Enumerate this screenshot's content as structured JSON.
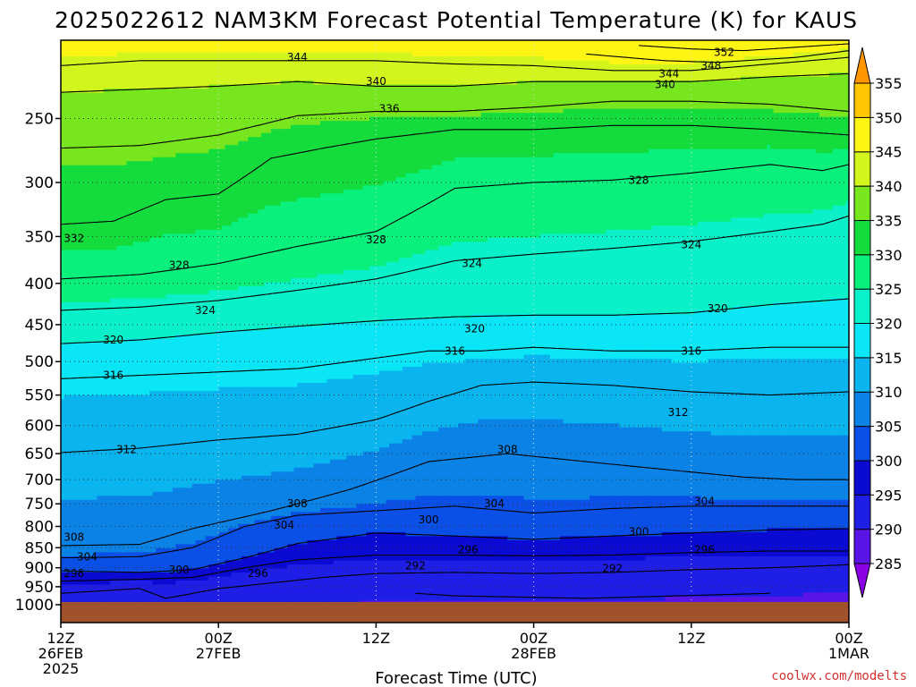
{
  "chart_data": {
    "type": "heatmap",
    "title": "2025022612 NAM3KM Forecast Potential Temperature (K) for KAUS",
    "xlabel": "Forecast Time (UTC)",
    "ylabel": "",
    "x_ticks": [
      {
        "h": 0,
        "line1": "12Z",
        "line2": "26FEB",
        "line3": "2025"
      },
      {
        "h": 12,
        "line1": "00Z",
        "line2": "27FEB",
        "line3": ""
      },
      {
        "h": 24,
        "line1": "12Z",
        "line2": "",
        "line3": ""
      },
      {
        "h": 36,
        "line1": "00Z",
        "line2": "28FEB",
        "line3": ""
      },
      {
        "h": 48,
        "line1": "12Z",
        "line2": "",
        "line3": ""
      },
      {
        "h": 60,
        "line1": "00Z",
        "line2": "1MAR",
        "line3": ""
      }
    ],
    "xlim_hours": [
      0,
      60
    ],
    "y_scale": "log-pressure (hPa), inverted",
    "ylim_hpa": [
      1000,
      200
    ],
    "y_ticks": [
      250,
      300,
      350,
      400,
      450,
      500,
      550,
      600,
      650,
      700,
      750,
      800,
      850,
      900,
      950,
      1000
    ],
    "grid": "dotted",
    "colorbar": {
      "levels": [
        285,
        290,
        295,
        300,
        305,
        310,
        315,
        320,
        325,
        330,
        335,
        340,
        345,
        350,
        355
      ],
      "colors": [
        "#8a00e6",
        "#5a14e6",
        "#1e1ee6",
        "#0a0ad2",
        "#0a50e6",
        "#0a82e6",
        "#0ab4ee",
        "#0ae6f5",
        "#0af0c8",
        "#0af07d",
        "#14dc3c",
        "#78e61e",
        "#d2f51e",
        "#fff514",
        "#ffc800",
        "#ff9600"
      ],
      "labels": [
        "285",
        "290",
        "295",
        "300",
        "305",
        "310",
        "315",
        "320",
        "325",
        "330",
        "335",
        "340",
        "345",
        "350",
        "355"
      ],
      "extend": "both",
      "placement": "right"
    },
    "series": [
      {
        "theta": 288,
        "p": [
          {
            "h": 27,
            "p": 968
          },
          {
            "h": 30,
            "p": 975
          },
          {
            "h": 40,
            "p": 982
          },
          {
            "h": 50,
            "p": 972
          },
          {
            "h": 54,
            "p": 968
          }
        ]
      },
      {
        "theta": 292,
        "p": [
          {
            "h": 0,
            "p": 968
          },
          {
            "h": 6,
            "p": 955
          },
          {
            "h": 8,
            "p": 982
          },
          {
            "h": 12,
            "p": 955
          },
          {
            "h": 16,
            "p": 940
          },
          {
            "h": 20,
            "p": 925
          },
          {
            "h": 24,
            "p": 915
          },
          {
            "h": 30,
            "p": 912
          },
          {
            "h": 36,
            "p": 915
          },
          {
            "h": 42,
            "p": 912
          },
          {
            "h": 48,
            "p": 905
          },
          {
            "h": 54,
            "p": 900
          },
          {
            "h": 58,
            "p": 895
          },
          {
            "h": 60,
            "p": 892
          }
        ]
      },
      {
        "theta": 296,
        "p": [
          {
            "h": 0,
            "p": 935
          },
          {
            "h": 6,
            "p": 930
          },
          {
            "h": 10,
            "p": 925
          },
          {
            "h": 14,
            "p": 900
          },
          {
            "h": 18,
            "p": 880
          },
          {
            "h": 24,
            "p": 868
          },
          {
            "h": 30,
            "p": 868
          },
          {
            "h": 36,
            "p": 870
          },
          {
            "h": 42,
            "p": 868
          },
          {
            "h": 48,
            "p": 862
          },
          {
            "h": 54,
            "p": 858
          },
          {
            "h": 60,
            "p": 858
          }
        ]
      },
      {
        "theta": 300,
        "p": [
          {
            "h": 0,
            "p": 908
          },
          {
            "h": 6,
            "p": 912
          },
          {
            "h": 10,
            "p": 905
          },
          {
            "h": 14,
            "p": 875
          },
          {
            "h": 18,
            "p": 840
          },
          {
            "h": 24,
            "p": 815
          },
          {
            "h": 30,
            "p": 822
          },
          {
            "h": 36,
            "p": 830
          },
          {
            "h": 42,
            "p": 822
          },
          {
            "h": 48,
            "p": 815
          },
          {
            "h": 54,
            "p": 808
          },
          {
            "h": 60,
            "p": 805
          }
        ]
      },
      {
        "theta": 304,
        "p": [
          {
            "h": 0,
            "p": 875
          },
          {
            "h": 6,
            "p": 872
          },
          {
            "h": 10,
            "p": 850
          },
          {
            "h": 14,
            "p": 800
          },
          {
            "h": 18,
            "p": 775
          },
          {
            "h": 24,
            "p": 765
          },
          {
            "h": 30,
            "p": 755
          },
          {
            "h": 36,
            "p": 770
          },
          {
            "h": 42,
            "p": 760
          },
          {
            "h": 48,
            "p": 755
          },
          {
            "h": 54,
            "p": 755
          },
          {
            "h": 60,
            "p": 755
          }
        ]
      },
      {
        "theta": 308,
        "p": [
          {
            "h": 0,
            "p": 845
          },
          {
            "h": 6,
            "p": 842
          },
          {
            "h": 10,
            "p": 805
          },
          {
            "h": 16,
            "p": 765
          },
          {
            "h": 22,
            "p": 720
          },
          {
            "h": 28,
            "p": 665
          },
          {
            "h": 34,
            "p": 650
          },
          {
            "h": 40,
            "p": 665
          },
          {
            "h": 46,
            "p": 680
          },
          {
            "h": 52,
            "p": 695
          },
          {
            "h": 56,
            "p": 700
          },
          {
            "h": 60,
            "p": 700
          }
        ]
      },
      {
        "theta": 312,
        "p": [
          {
            "h": 0,
            "p": 648
          },
          {
            "h": 6,
            "p": 640
          },
          {
            "h": 12,
            "p": 625
          },
          {
            "h": 18,
            "p": 615
          },
          {
            "h": 24,
            "p": 590
          },
          {
            "h": 28,
            "p": 560
          },
          {
            "h": 32,
            "p": 535
          },
          {
            "h": 36,
            "p": 530
          },
          {
            "h": 42,
            "p": 535
          },
          {
            "h": 48,
            "p": 545
          },
          {
            "h": 54,
            "p": 550
          },
          {
            "h": 60,
            "p": 545
          }
        ]
      },
      {
        "theta": 316,
        "p": [
          {
            "h": 0,
            "p": 525
          },
          {
            "h": 6,
            "p": 520
          },
          {
            "h": 12,
            "p": 515
          },
          {
            "h": 18,
            "p": 510
          },
          {
            "h": 24,
            "p": 495
          },
          {
            "h": 28,
            "p": 485
          },
          {
            "h": 32,
            "p": 485
          },
          {
            "h": 36,
            "p": 480
          },
          {
            "h": 42,
            "p": 485
          },
          {
            "h": 48,
            "p": 485
          },
          {
            "h": 54,
            "p": 480
          },
          {
            "h": 60,
            "p": 480
          }
        ]
      },
      {
        "theta": 320,
        "p": [
          {
            "h": 0,
            "p": 475
          },
          {
            "h": 6,
            "p": 470
          },
          {
            "h": 12,
            "p": 460
          },
          {
            "h": 18,
            "p": 452
          },
          {
            "h": 24,
            "p": 445
          },
          {
            "h": 30,
            "p": 440
          },
          {
            "h": 36,
            "p": 438
          },
          {
            "h": 42,
            "p": 438
          },
          {
            "h": 48,
            "p": 435
          },
          {
            "h": 54,
            "p": 425
          },
          {
            "h": 60,
            "p": 418
          }
        ]
      },
      {
        "theta": 324,
        "p": [
          {
            "h": 0,
            "p": 432
          },
          {
            "h": 6,
            "p": 428
          },
          {
            "h": 12,
            "p": 420
          },
          {
            "h": 18,
            "p": 408
          },
          {
            "h": 24,
            "p": 395
          },
          {
            "h": 30,
            "p": 375
          },
          {
            "h": 36,
            "p": 368
          },
          {
            "h": 42,
            "p": 362
          },
          {
            "h": 48,
            "p": 355
          },
          {
            "h": 54,
            "p": 345
          },
          {
            "h": 58,
            "p": 338
          },
          {
            "h": 60,
            "p": 330
          }
        ]
      },
      {
        "theta": 328,
        "p": [
          {
            "h": 0,
            "p": 395
          },
          {
            "h": 6,
            "p": 390
          },
          {
            "h": 12,
            "p": 378
          },
          {
            "h": 18,
            "p": 360
          },
          {
            "h": 24,
            "p": 345
          },
          {
            "h": 30,
            "p": 305
          },
          {
            "h": 36,
            "p": 300
          },
          {
            "h": 42,
            "p": 298
          },
          {
            "h": 48,
            "p": 292
          },
          {
            "h": 54,
            "p": 285
          },
          {
            "h": 58,
            "p": 290
          },
          {
            "h": 60,
            "p": 285
          }
        ]
      },
      {
        "theta": 332,
        "p": [
          {
            "h": 0,
            "p": 338
          },
          {
            "h": 4,
            "p": 335
          },
          {
            "h": 8,
            "p": 315
          },
          {
            "h": 12,
            "p": 310
          },
          {
            "h": 16,
            "p": 280
          },
          {
            "h": 20,
            "p": 272
          },
          {
            "h": 24,
            "p": 265
          },
          {
            "h": 30,
            "p": 258
          },
          {
            "h": 36,
            "p": 258
          },
          {
            "h": 42,
            "p": 255
          },
          {
            "h": 48,
            "p": 255
          },
          {
            "h": 54,
            "p": 258
          },
          {
            "h": 60,
            "p": 262
          }
        ]
      },
      {
        "theta": 336,
        "p": [
          {
            "h": 0,
            "p": 272
          },
          {
            "h": 6,
            "p": 270
          },
          {
            "h": 12,
            "p": 262
          },
          {
            "h": 18,
            "p": 248
          },
          {
            "h": 24,
            "p": 245
          },
          {
            "h": 30,
            "p": 245
          },
          {
            "h": 36,
            "p": 242
          },
          {
            "h": 42,
            "p": 238
          },
          {
            "h": 48,
            "p": 238
          },
          {
            "h": 54,
            "p": 240
          },
          {
            "h": 60,
            "p": 245
          }
        ]
      },
      {
        "theta": 340,
        "p": [
          {
            "h": 0,
            "p": 232
          },
          {
            "h": 6,
            "p": 230
          },
          {
            "h": 12,
            "p": 228
          },
          {
            "h": 18,
            "p": 225
          },
          {
            "h": 24,
            "p": 228
          },
          {
            "h": 30,
            "p": 228
          },
          {
            "h": 36,
            "p": 225
          },
          {
            "h": 42,
            "p": 225
          },
          {
            "h": 48,
            "p": 225
          },
          {
            "h": 54,
            "p": 222
          },
          {
            "h": 60,
            "p": 220
          }
        ]
      },
      {
        "theta": 344,
        "p": [
          {
            "h": 0,
            "p": 215
          },
          {
            "h": 6,
            "p": 212
          },
          {
            "h": 12,
            "p": 212
          },
          {
            "h": 18,
            "p": 212
          },
          {
            "h": 24,
            "p": 212
          },
          {
            "h": 30,
            "p": 214
          },
          {
            "h": 36,
            "p": 215
          },
          {
            "h": 42,
            "p": 218
          },
          {
            "h": 48,
            "p": 218
          },
          {
            "h": 54,
            "p": 214
          },
          {
            "h": 60,
            "p": 210
          }
        ]
      },
      {
        "theta": 348,
        "p": [
          {
            "h": 40,
            "p": 208
          },
          {
            "h": 46,
            "p": 212
          },
          {
            "h": 50,
            "p": 213
          },
          {
            "h": 56,
            "p": 210
          },
          {
            "h": 60,
            "p": 206
          }
        ]
      },
      {
        "theta": 352,
        "p": [
          {
            "h": 44,
            "p": 203
          },
          {
            "h": 48,
            "p": 205
          },
          {
            "h": 52,
            "p": 206
          },
          {
            "h": 56,
            "p": 204
          },
          {
            "h": 60,
            "p": 202
          }
        ]
      }
    ],
    "contour_labels": [
      {
        "text": "344",
        "h": 18,
        "p": 210
      },
      {
        "text": "352",
        "h": 50.5,
        "p": 207
      },
      {
        "text": "348",
        "h": 49.5,
        "p": 215
      },
      {
        "text": "344",
        "h": 46.3,
        "p": 220
      },
      {
        "text": "340",
        "h": 46.0,
        "p": 227
      },
      {
        "text": "340",
        "h": 24.0,
        "p": 225
      },
      {
        "text": "336",
        "h": 25.0,
        "p": 243
      },
      {
        "text": "328",
        "h": 44.0,
        "p": 298
      },
      {
        "text": "332",
        "h": 1.0,
        "p": 352
      },
      {
        "text": "328",
        "h": 24.0,
        "p": 353
      },
      {
        "text": "324",
        "h": 48.0,
        "p": 358
      },
      {
        "text": "328",
        "h": 9.0,
        "p": 380
      },
      {
        "text": "324",
        "h": 31.3,
        "p": 378
      },
      {
        "text": "324",
        "h": 11.0,
        "p": 432
      },
      {
        "text": "320",
        "h": 50.0,
        "p": 430
      },
      {
        "text": "320",
        "h": 31.5,
        "p": 455
      },
      {
        "text": "320",
        "h": 4.0,
        "p": 470
      },
      {
        "text": "316",
        "h": 30.0,
        "p": 485
      },
      {
        "text": "316",
        "h": 48.0,
        "p": 485
      },
      {
        "text": "316",
        "h": 4.0,
        "p": 520
      },
      {
        "text": "312",
        "h": 47.0,
        "p": 578
      },
      {
        "text": "312",
        "h": 5.0,
        "p": 642
      },
      {
        "text": "308",
        "h": 34.0,
        "p": 642
      },
      {
        "text": "308",
        "h": 18.0,
        "p": 750
      },
      {
        "text": "304",
        "h": 33.0,
        "p": 750
      },
      {
        "text": "304",
        "h": 49.0,
        "p": 745
      },
      {
        "text": "300",
        "h": 28.0,
        "p": 785
      },
      {
        "text": "304",
        "h": 17.0,
        "p": 797
      },
      {
        "text": "300",
        "h": 44.0,
        "p": 812
      },
      {
        "text": "308",
        "h": 1.0,
        "p": 825
      },
      {
        "text": "296",
        "h": 31.0,
        "p": 855
      },
      {
        "text": "296",
        "h": 49.0,
        "p": 855
      },
      {
        "text": "304",
        "h": 2.0,
        "p": 872
      },
      {
        "text": "292",
        "h": 27.0,
        "p": 895
      },
      {
        "text": "292",
        "h": 42.0,
        "p": 902
      },
      {
        "text": "300",
        "h": 9.0,
        "p": 905
      },
      {
        "text": "296",
        "h": 1.0,
        "p": 915
      },
      {
        "text": "296",
        "h": 15.0,
        "p": 915
      }
    ]
  },
  "credit": "coolwx.com/modelts",
  "colors": {
    "ground": "#a0522d",
    "contour": "#000000",
    "credit": "#d03030"
  }
}
